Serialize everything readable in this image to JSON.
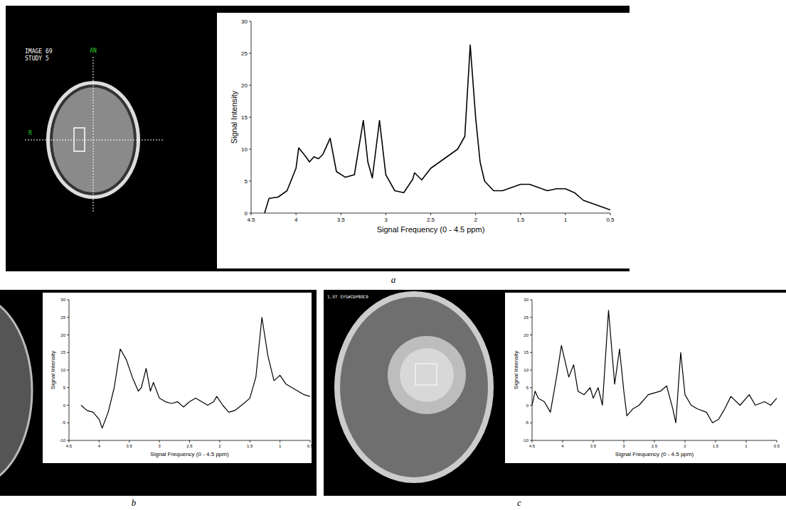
{
  "chart_data": [
    {
      "type": "line",
      "x_label": "Signal Frequency (0 - 4.5 ppm)",
      "y_label": "Signal Intensity",
      "color": "#000000",
      "grid": false,
      "xlim": [
        4.5,
        0.5
      ],
      "xticks": [
        4.5,
        4,
        3.5,
        3,
        2.5,
        2,
        1.5,
        1,
        0.5
      ],
      "ylim": [
        0,
        30
      ],
      "yticks": [
        0,
        5,
        10,
        15,
        20,
        25,
        30
      ],
      "x": [
        4.35,
        4.3,
        4.2,
        4.1,
        4.0,
        3.97,
        3.9,
        3.85,
        3.8,
        3.75,
        3.7,
        3.62,
        3.55,
        3.45,
        3.35,
        3.25,
        3.2,
        3.15,
        3.07,
        3.0,
        2.9,
        2.8,
        2.7,
        2.68,
        2.6,
        2.5,
        2.4,
        2.3,
        2.2,
        2.12,
        2.06,
        2.0,
        1.95,
        1.9,
        1.8,
        1.7,
        1.6,
        1.5,
        1.4,
        1.3,
        1.2,
        1.1,
        1.0,
        0.9,
        0.8,
        0.7,
        0.6,
        0.5
      ],
      "values": [
        0,
        2.3,
        2.5,
        3.5,
        7,
        10.2,
        9,
        8,
        8.8,
        8.5,
        9.2,
        11.7,
        6.5,
        5.6,
        6,
        14.5,
        8,
        5.5,
        14.5,
        6,
        3.5,
        3.2,
        5.3,
        6.3,
        5.2,
        7,
        8,
        9,
        10,
        12,
        26.3,
        15,
        8,
        5,
        3.5,
        3.5,
        4,
        4.5,
        4.5,
        4,
        3.5,
        3.8,
        3.8,
        3.2,
        2,
        1.5,
        1,
        0.5
      ]
    },
    {
      "type": "line",
      "x_label": "Signal Frequency (0 - 4.5 ppm)",
      "y_label": "Signal Intensity",
      "color": "#000000",
      "grid": false,
      "xlim": [
        4.5,
        0.5
      ],
      "xticks": [
        4.5,
        4,
        3.5,
        3,
        2.5,
        2,
        1.5,
        1,
        0.5
      ],
      "ylim": [
        -10,
        30
      ],
      "yticks": [
        -10,
        -5,
        0,
        5,
        10,
        15,
        20,
        25,
        30
      ],
      "x": [
        4.3,
        4.2,
        4.1,
        4.0,
        3.95,
        3.85,
        3.75,
        3.65,
        3.55,
        3.45,
        3.35,
        3.3,
        3.22,
        3.15,
        3.1,
        3.0,
        2.9,
        2.8,
        2.7,
        2.6,
        2.5,
        2.4,
        2.3,
        2.2,
        2.1,
        2.05,
        1.95,
        1.85,
        1.75,
        1.6,
        1.5,
        1.4,
        1.3,
        1.2,
        1.1,
        1.0,
        0.9,
        0.8,
        0.7,
        0.6,
        0.5
      ],
      "values": [
        0,
        -1.5,
        -2,
        -4,
        -6.5,
        -2,
        5,
        16,
        13,
        8,
        4,
        5,
        10.5,
        4,
        6.5,
        2,
        1,
        0.5,
        1,
        -0.5,
        1,
        2,
        1,
        0,
        1,
        2.5,
        0,
        -2,
        -1.5,
        0.5,
        2,
        8,
        25,
        14,
        7,
        8.5,
        6,
        5,
        4,
        3,
        2.5
      ]
    },
    {
      "type": "line",
      "x_label": "Signal Frequency (0 - 4.5 ppm)",
      "y_label": "Signal Intensity",
      "color": "#000000",
      "grid": false,
      "xlim": [
        4.5,
        0.5
      ],
      "xticks": [
        4.5,
        4,
        3.5,
        3,
        2.5,
        2,
        1.5,
        1,
        0.5
      ],
      "ylim": [
        -10,
        30
      ],
      "yticks": [
        -10,
        -5,
        0,
        5,
        10,
        15,
        20,
        25,
        30
      ],
      "x": [
        4.5,
        4.45,
        4.4,
        4.3,
        4.2,
        4.1,
        4.02,
        3.9,
        3.82,
        3.75,
        3.65,
        3.55,
        3.5,
        3.42,
        3.35,
        3.25,
        3.15,
        3.07,
        3.0,
        2.95,
        2.85,
        2.75,
        2.6,
        2.5,
        2.4,
        2.3,
        2.2,
        2.15,
        2.07,
        2.0,
        1.9,
        1.8,
        1.65,
        1.55,
        1.45,
        1.35,
        1.25,
        1.1,
        0.95,
        0.85,
        0.7,
        0.6,
        0.5
      ],
      "values": [
        0,
        4,
        2,
        1,
        -2,
        8,
        17,
        8,
        11.5,
        4,
        3,
        5,
        2,
        5,
        0,
        27,
        6,
        16,
        4,
        -3,
        -1,
        0,
        3,
        3.5,
        4,
        5.5,
        -1,
        -5,
        15,
        3,
        0,
        -1,
        -2,
        -5,
        -4,
        -1,
        2.5,
        0,
        3,
        0,
        1,
        0,
        2
      ]
    }
  ],
  "panels": [
    {
      "letter": "a",
      "image_texts": [
        "IMAGE 69",
        "STUDY 5",
        "AN",
        "R"
      ]
    },
    {
      "letter": "b"
    },
    {
      "letter": "c",
      "image_texts": [
        "1.5T SYS#CDP8OC0"
      ]
    }
  ]
}
